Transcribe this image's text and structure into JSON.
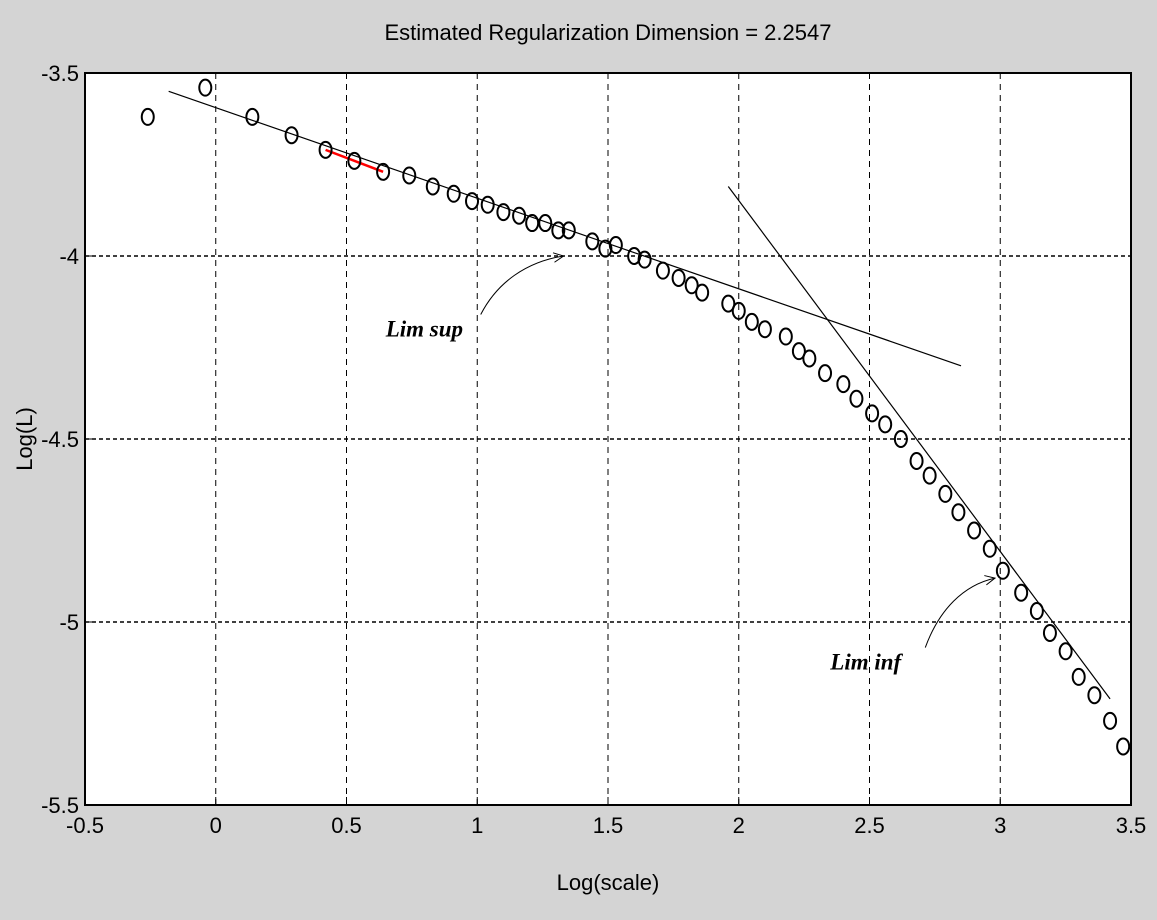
{
  "chart_data": {
    "type": "scatter",
    "title": "Estimated Regularization Dimension = 2.2547",
    "xlabel": "Log(scale)",
    "ylabel": "Log(L)",
    "xlim": [
      -0.5,
      3.5
    ],
    "ylim": [
      -5.5,
      -3.5
    ],
    "xticks": [
      "-0.5",
      "0",
      "0.5",
      "1",
      "1.5",
      "2",
      "2.5",
      "3",
      "3.5"
    ],
    "yticks": [
      "-3.5",
      "-4",
      "-4.5",
      "-5",
      "-5.5"
    ],
    "grid": true,
    "marker": "open-circle",
    "points_x": [
      -0.26,
      -0.04,
      0.14,
      0.29,
      0.42,
      0.53,
      0.64,
      0.74,
      0.83,
      0.91,
      0.98,
      1.04,
      1.1,
      1.16,
      1.21,
      1.26,
      1.31,
      1.35,
      1.44,
      1.49,
      1.53,
      1.6,
      1.64,
      1.71,
      1.77,
      1.82,
      1.86,
      1.96,
      2.0,
      2.05,
      2.1,
      2.18,
      2.23,
      2.27,
      2.33,
      2.4,
      2.45,
      2.51,
      2.56,
      2.62,
      2.68,
      2.73,
      2.79,
      2.84,
      2.9,
      2.96,
      3.01,
      3.08,
      3.14,
      3.19,
      3.25,
      3.3,
      3.36,
      3.42,
      3.47
    ],
    "points_y": [
      -3.62,
      -3.54,
      -3.62,
      -3.67,
      -3.71,
      -3.74,
      -3.77,
      -3.78,
      -3.81,
      -3.83,
      -3.85,
      -3.86,
      -3.88,
      -3.89,
      -3.91,
      -3.91,
      -3.93,
      -3.93,
      -3.96,
      -3.98,
      -3.97,
      -4.0,
      -4.01,
      -4.04,
      -4.06,
      -4.08,
      -4.1,
      -4.13,
      -4.15,
      -4.18,
      -4.2,
      -4.22,
      -4.26,
      -4.28,
      -4.32,
      -4.35,
      -4.39,
      -4.43,
      -4.46,
      -4.5,
      -4.56,
      -4.6,
      -4.65,
      -4.7,
      -4.75,
      -4.8,
      -4.86,
      -4.92,
      -4.97,
      -5.03,
      -5.08,
      -5.15,
      -5.2,
      -5.27,
      -5.34
    ],
    "lines": [
      {
        "x": [
          -0.18,
          2.85
        ],
        "y": [
          -3.55,
          -4.3
        ],
        "color": "#000000"
      },
      {
        "x": [
          0.42,
          0.64
        ],
        "y": [
          -3.71,
          -3.77
        ],
        "color": "#ff0000"
      },
      {
        "x": [
          1.96,
          3.42
        ],
        "y": [
          -3.81,
          -5.21
        ],
        "color": "#000000"
      }
    ],
    "annotations": [
      {
        "text": "Lim sup",
        "x": 0.65,
        "y": -4.22,
        "arrow_to": [
          1.33,
          -4.0
        ]
      },
      {
        "text": "Lim inf",
        "x": 2.35,
        "y": -5.13,
        "arrow_to": [
          2.98,
          -4.88
        ]
      }
    ]
  }
}
